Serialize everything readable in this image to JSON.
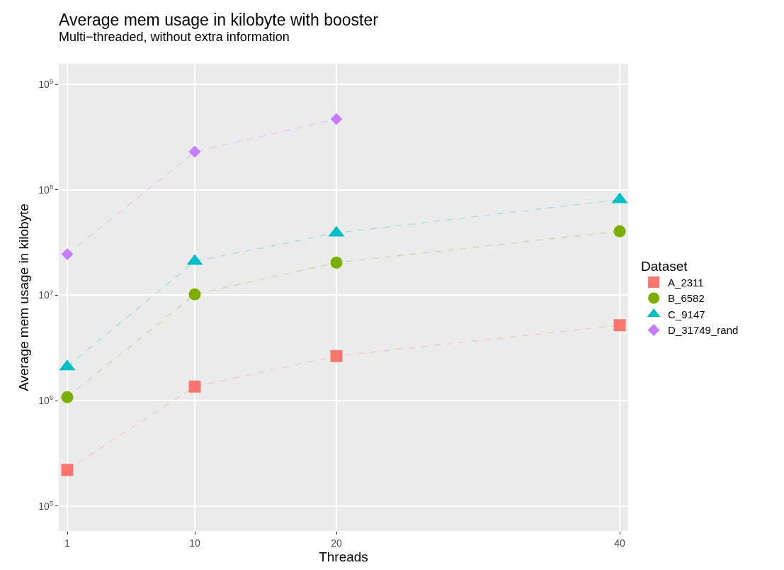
{
  "chart_data": {
    "type": "line",
    "title": "Average mem usage in kilobyte with booster",
    "subtitle": "Multi−threaded, without extra information",
    "xlabel": "Threads",
    "ylabel": "Average mem usage in kilobyte",
    "legend_title": "Dataset",
    "x": [
      1,
      10,
      20,
      40
    ],
    "series": [
      {
        "name": "A_2311",
        "color": "#f8766d",
        "marker": "square",
        "values": [
          220000,
          1360000,
          2650000,
          5200000
        ]
      },
      {
        "name": "B_6582",
        "color": "#7cae00",
        "marker": "circle",
        "values": [
          1080000,
          10200000,
          20400000,
          40500000
        ]
      },
      {
        "name": "C_9147",
        "color": "#00bfc4",
        "marker": "triangle",
        "values": [
          2100000,
          21000000,
          39000000,
          81000000
        ]
      },
      {
        "name": "D_31749_rand",
        "color": "#c77cff",
        "marker": "diamond",
        "values": [
          24500000,
          230000000,
          470000000,
          null
        ]
      }
    ],
    "line_style": "dashed",
    "log": "y",
    "grid": true,
    "legend": "right",
    "xlim": [
      0.4,
      40.6
    ],
    "xticks": [
      1,
      10,
      20,
      40
    ],
    "ylim": [
      58000,
      1570000000
    ],
    "yticks": [
      {
        "value": 100000,
        "label": "10$^{5}$"
      },
      {
        "value": 1000000,
        "label": "10$^{6}$"
      },
      {
        "value": 10000000,
        "label": "10$^{7}$"
      },
      {
        "value": 100000000,
        "label": "10$^{8}$"
      },
      {
        "value": 1000000000,
        "label": "10$^{9}$"
      }
    ]
  }
}
